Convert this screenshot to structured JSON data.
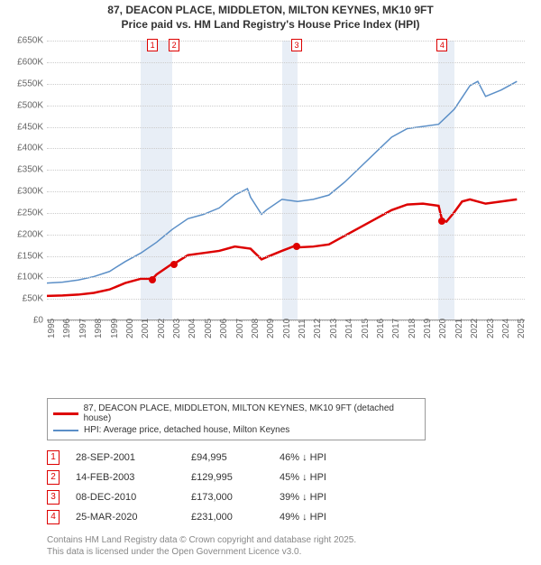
{
  "title_line1": "87, DEACON PLACE, MIDDLETON, MILTON KEYNES, MK10 9FT",
  "title_line2": "Price paid vs. HM Land Registry's House Price Index (HPI)",
  "chart": {
    "type": "line",
    "y_ticks": [
      "£0",
      "£50K",
      "£100K",
      "£150K",
      "£200K",
      "£250K",
      "£300K",
      "£350K",
      "£400K",
      "£450K",
      "£500K",
      "£550K",
      "£600K",
      "£650K"
    ],
    "y_max": 650,
    "x_labels": [
      "1995",
      "1996",
      "1997",
      "1998",
      "1999",
      "2000",
      "2001",
      "2002",
      "2003",
      "2004",
      "2005",
      "2006",
      "2007",
      "2008",
      "2009",
      "2010",
      "2011",
      "2012",
      "2013",
      "2014",
      "2015",
      "2016",
      "2017",
      "2018",
      "2019",
      "2020",
      "2021",
      "2022",
      "2023",
      "2024",
      "2025"
    ],
    "x_min": 1995,
    "x_max": 2025.5,
    "series_red": {
      "color": "#dd0000",
      "width": 2.5,
      "points": [
        [
          1995,
          55
        ],
        [
          1996,
          56
        ],
        [
          1997,
          58
        ],
        [
          1998,
          62
        ],
        [
          1999,
          70
        ],
        [
          2000,
          85
        ],
        [
          2001,
          95
        ],
        [
          2001.74,
          95
        ],
        [
          2002,
          105
        ],
        [
          2003,
          130
        ],
        [
          2003.12,
          130
        ],
        [
          2004,
          150
        ],
        [
          2005,
          155
        ],
        [
          2006,
          160
        ],
        [
          2007,
          170
        ],
        [
          2008,
          165
        ],
        [
          2008.7,
          140
        ],
        [
          2009,
          145
        ],
        [
          2010,
          160
        ],
        [
          2010.94,
          173
        ],
        [
          2011,
          168
        ],
        [
          2012,
          170
        ],
        [
          2013,
          175
        ],
        [
          2014,
          195
        ],
        [
          2015,
          215
        ],
        [
          2016,
          235
        ],
        [
          2017,
          255
        ],
        [
          2018,
          268
        ],
        [
          2019,
          270
        ],
        [
          2020,
          265
        ],
        [
          2020.23,
          231
        ],
        [
          2020.5,
          228
        ],
        [
          2021,
          250
        ],
        [
          2021.5,
          275
        ],
        [
          2022,
          280
        ],
        [
          2023,
          270
        ],
        [
          2024,
          275
        ],
        [
          2025,
          280
        ]
      ]
    },
    "series_blue": {
      "color": "#5b8fc7",
      "width": 1.5,
      "points": [
        [
          1995,
          85
        ],
        [
          1996,
          87
        ],
        [
          1997,
          92
        ],
        [
          1998,
          100
        ],
        [
          1999,
          112
        ],
        [
          2000,
          135
        ],
        [
          2001,
          155
        ],
        [
          2002,
          180
        ],
        [
          2003,
          210
        ],
        [
          2004,
          235
        ],
        [
          2005,
          245
        ],
        [
          2006,
          260
        ],
        [
          2007,
          290
        ],
        [
          2007.8,
          305
        ],
        [
          2008,
          285
        ],
        [
          2008.7,
          245
        ],
        [
          2009,
          255
        ],
        [
          2010,
          280
        ],
        [
          2011,
          275
        ],
        [
          2012,
          280
        ],
        [
          2013,
          290
        ],
        [
          2014,
          320
        ],
        [
          2015,
          355
        ],
        [
          2016,
          390
        ],
        [
          2017,
          425
        ],
        [
          2018,
          445
        ],
        [
          2019,
          450
        ],
        [
          2020,
          455
        ],
        [
          2021,
          490
        ],
        [
          2022,
          545
        ],
        [
          2022.5,
          555
        ],
        [
          2023,
          520
        ],
        [
          2024,
          535
        ],
        [
          2025,
          555
        ]
      ]
    },
    "shaded_years": [
      [
        2001,
        2002
      ],
      [
        2002,
        2003
      ],
      [
        2010,
        2011
      ],
      [
        2020,
        2021
      ]
    ],
    "markers": [
      {
        "n": "1",
        "year": 2001.74,
        "price": 95
      },
      {
        "n": "2",
        "year": 2003.12,
        "price": 130
      },
      {
        "n": "3",
        "year": 2010.94,
        "price": 173
      },
      {
        "n": "4",
        "year": 2020.23,
        "price": 231
      }
    ]
  },
  "legend": {
    "red_color": "#dd0000",
    "red_label": "87, DEACON PLACE, MIDDLETON, MILTON KEYNES, MK10 9FT (detached house)",
    "blue_color": "#5b8fc7",
    "blue_label": "HPI: Average price, detached house, Milton Keynes"
  },
  "sales": [
    {
      "n": "1",
      "date": "28-SEP-2001",
      "price": "£94,995",
      "delta": "46% ↓ HPI"
    },
    {
      "n": "2",
      "date": "14-FEB-2003",
      "price": "£129,995",
      "delta": "45% ↓ HPI"
    },
    {
      "n": "3",
      "date": "08-DEC-2010",
      "price": "£173,000",
      "delta": "39% ↓ HPI"
    },
    {
      "n": "4",
      "date": "25-MAR-2020",
      "price": "£231,000",
      "delta": "49% ↓ HPI"
    }
  ],
  "footer_line1": "Contains HM Land Registry data © Crown copyright and database right 2025.",
  "footer_line2": "This data is licensed under the Open Government Licence v3.0."
}
